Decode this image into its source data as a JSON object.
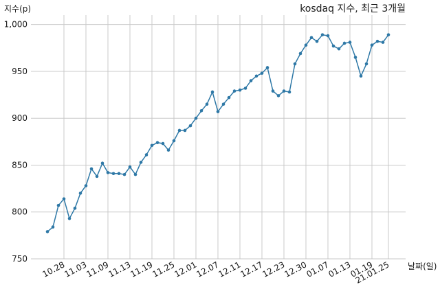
{
  "chart_data": {
    "type": "line",
    "title": "kosdaq 지수, 최근 3개월",
    "ylabel": "지수(p)",
    "xlabel": "날짜(일)",
    "ylim": [
      750,
      1010
    ],
    "yticks": [
      {
        "value": 750,
        "label": "750"
      },
      {
        "value": 800,
        "label": "800"
      },
      {
        "value": 850,
        "label": "850"
      },
      {
        "value": 900,
        "label": "900"
      },
      {
        "value": 950,
        "label": "950"
      },
      {
        "value": 1000,
        "label": "1,000"
      }
    ],
    "xticks": [
      {
        "index": 3,
        "label": "10.28"
      },
      {
        "index": 7,
        "label": "11.03"
      },
      {
        "index": 11,
        "label": "11.09"
      },
      {
        "index": 15,
        "label": "11.13"
      },
      {
        "index": 19,
        "label": "11.19"
      },
      {
        "index": 23,
        "label": "11.25"
      },
      {
        "index": 27,
        "label": "12.01"
      },
      {
        "index": 31,
        "label": "12.07"
      },
      {
        "index": 35,
        "label": "12.11"
      },
      {
        "index": 39,
        "label": "12.17"
      },
      {
        "index": 43,
        "label": "12.23"
      },
      {
        "index": 47,
        "label": "12.30"
      },
      {
        "index": 51,
        "label": "01.07"
      },
      {
        "index": 55,
        "label": "01.13"
      },
      {
        "index": 59,
        "label": "01.19"
      },
      {
        "index": 62,
        "label": "21.01.25"
      }
    ],
    "grid": true,
    "color": "#2e78a6",
    "values": [
      779,
      784,
      807,
      814,
      793,
      804,
      820,
      828,
      846,
      838,
      852,
      842,
      841,
      841,
      840,
      848,
      840,
      853,
      861,
      871,
      874,
      873,
      866,
      876,
      887,
      887,
      892,
      900,
      908,
      915,
      928,
      907,
      915,
      922,
      929,
      930,
      932,
      940,
      945,
      948,
      954,
      929,
      924,
      929,
      928,
      958,
      969,
      978,
      986,
      982,
      989,
      988,
      977,
      974,
      980,
      981,
      965,
      945,
      958,
      978,
      982,
      981,
      989
    ]
  }
}
